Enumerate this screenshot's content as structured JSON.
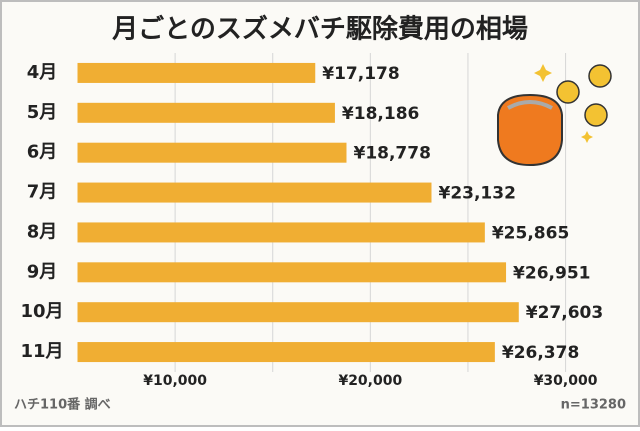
{
  "chart_data": {
    "type": "bar",
    "orientation": "horizontal",
    "title": "月ごとのスズメバチ駆除費用の相場",
    "categories": [
      "4月",
      "5月",
      "6月",
      "7月",
      "8月",
      "9月",
      "10月",
      "11月"
    ],
    "values": [
      17178,
      18186,
      18778,
      23132,
      25865,
      26951,
      27603,
      26378
    ],
    "value_labels": [
      "¥17,178",
      "¥18,186",
      "¥18,778",
      "¥23,132",
      "¥25,865",
      "¥26,951",
      "¥27,603",
      "¥26,378"
    ],
    "color": "#f0ae33",
    "xlim": [
      5000,
      33300
    ],
    "xticks": [
      {
        "value": 10000,
        "label": "¥10,000"
      },
      {
        "value": 20000,
        "label": "¥20,000"
      },
      {
        "value": 30000,
        "label": "¥30,000"
      }
    ],
    "x_minor_ticks": [
      15000,
      25000
    ],
    "grid": true,
    "source": "ハチ110番 調べ",
    "sample_size": "n=13280"
  }
}
